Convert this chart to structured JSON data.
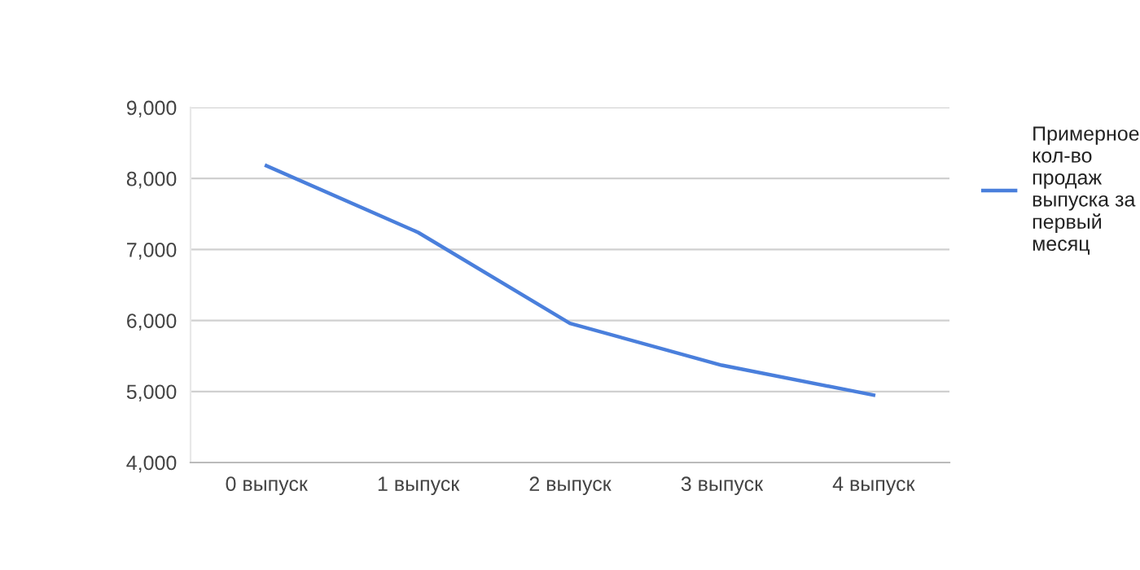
{
  "chart_data": {
    "type": "line",
    "categories": [
      "0 выпуск",
      "1 выпуск",
      "2 выпуск",
      "3 выпуск",
      "4 выпуск"
    ],
    "series": [
      {
        "name": "Примерное кол-во продаж выпуска за первый месяц",
        "color": "#4a7fdc",
        "values": [
          8180,
          7240,
          5960,
          5370,
          4950
        ]
      }
    ],
    "ylim": [
      4000,
      9000
    ],
    "yticks": [
      {
        "value": 4000,
        "label": "4,000"
      },
      {
        "value": 5000,
        "label": "5,000"
      },
      {
        "value": 6000,
        "label": "6,000"
      },
      {
        "value": 7000,
        "label": "7,000"
      },
      {
        "value": 8000,
        "label": "8,000"
      },
      {
        "value": 9000,
        "label": "9,000"
      }
    ],
    "grid": "y",
    "legend": "right",
    "marker": "none",
    "line_style": "solid"
  }
}
